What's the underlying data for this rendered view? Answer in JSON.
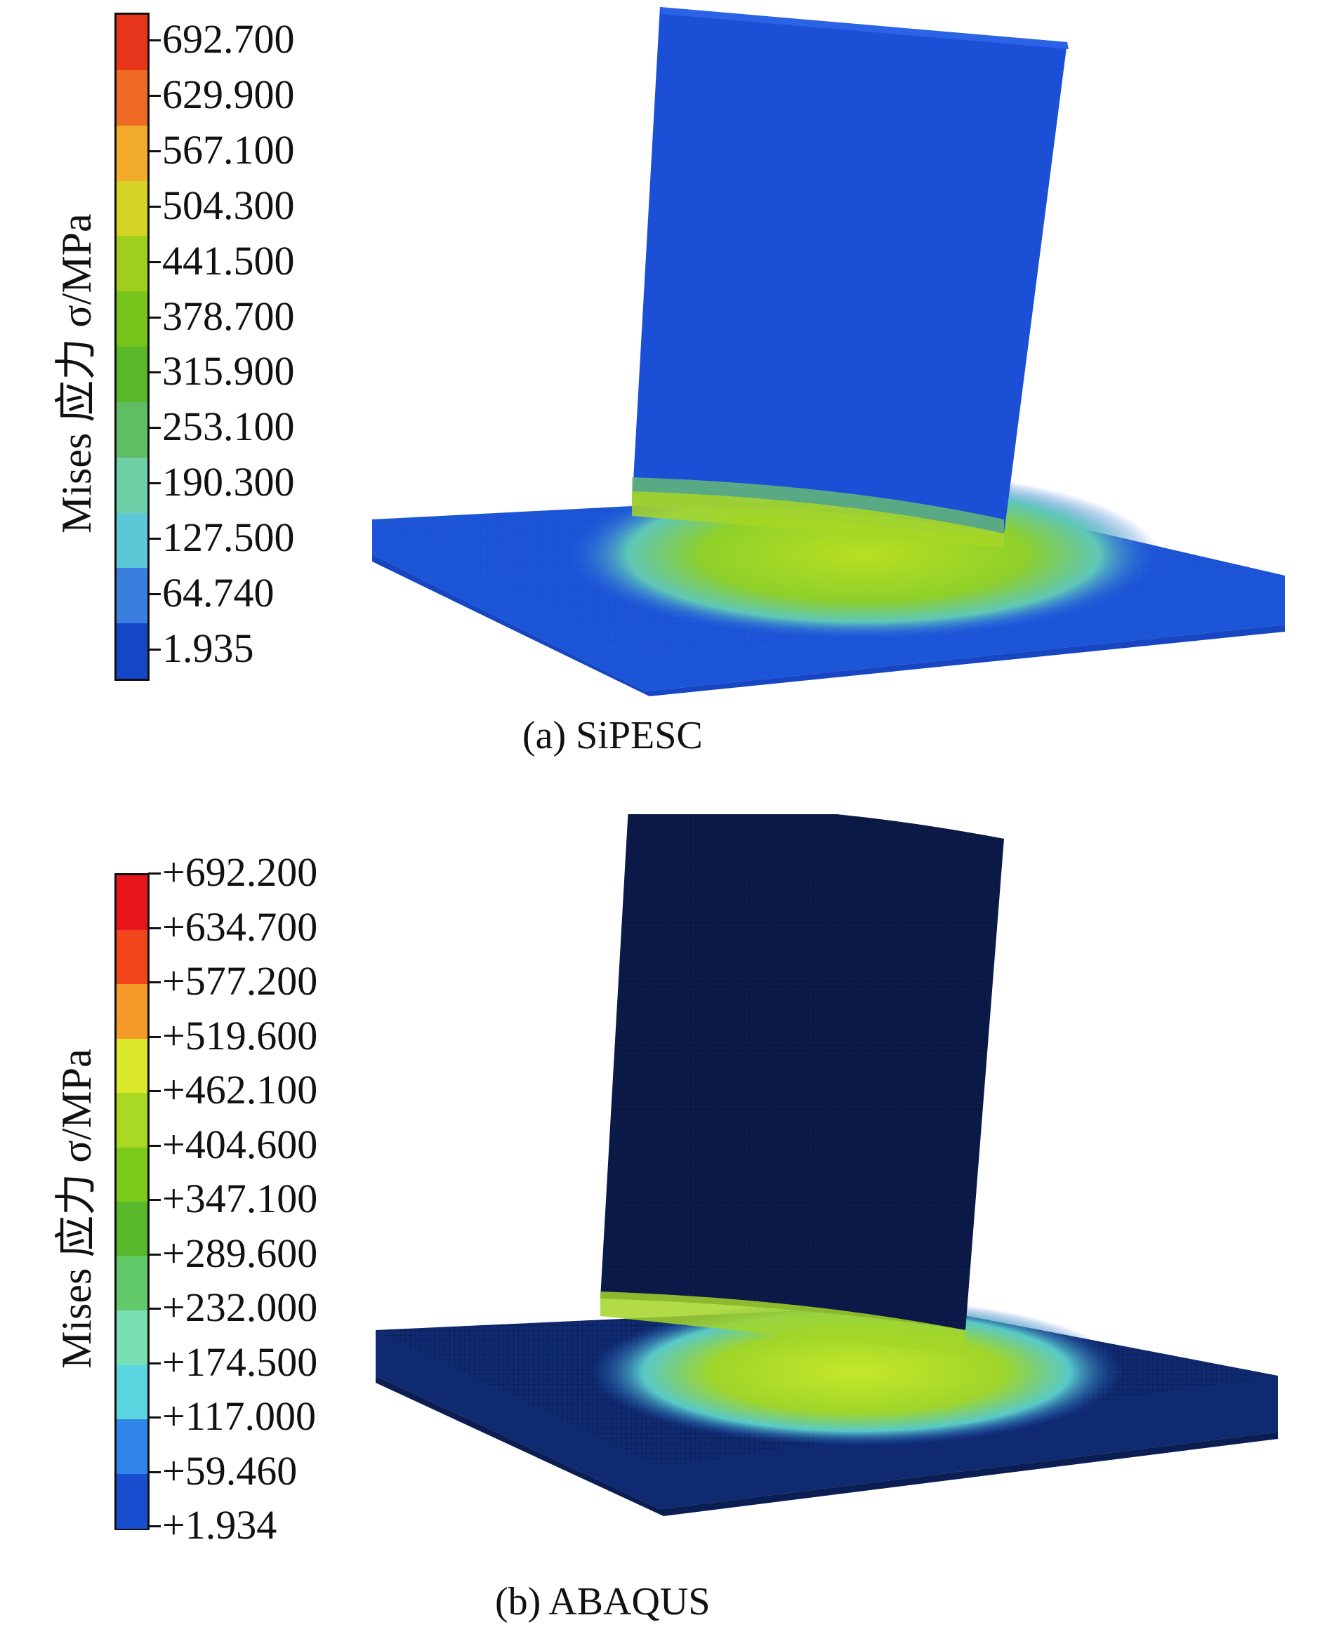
{
  "panels": [
    {
      "caption": "(a) SiPESC",
      "legend": {
        "title": "Mises 应力 σ/MPa",
        "labels": [
          "692.700",
          "629.900",
          "567.100",
          "504.300",
          "441.500",
          "378.700",
          "315.900",
          "253.100",
          "190.300",
          "127.500",
          "64.740",
          "1.935"
        ],
        "colors": [
          "#e8361c",
          "#ef6a24",
          "#f3ab2b",
          "#d6d424",
          "#9fcf1c",
          "#78c41a",
          "#58b82a",
          "#5fbd63",
          "#6fd0a8",
          "#5cc7d6",
          "#3a7fe0",
          "#1646c8"
        ]
      },
      "model_colors": {
        "body": "#1a4fd6",
        "plate": "#1d55d8",
        "hot": "#9ed21e"
      }
    },
    {
      "caption": "(b) ABAQUS",
      "legend": {
        "title": "Mises 应力 σ/MPa",
        "labels": [
          "+692.200",
          "+634.700",
          "+577.200",
          "+519.600",
          "+462.100",
          "+404.600",
          "+347.100",
          "+289.600",
          "+232.000",
          "+174.500",
          "+117.000",
          "+59.460",
          "+1.934"
        ],
        "colors": [
          "#e8161a",
          "#f2451c",
          "#f59a28",
          "#dbe82a",
          "#a9d922",
          "#7ccb1a",
          "#58b82c",
          "#62c96a",
          "#79e0b4",
          "#5ad6e0",
          "#2f85e8",
          "#1a4ed0"
        ]
      },
      "model_colors": {
        "body": "#0c1a4a",
        "plate": "#0f2a70",
        "hot": "#b8e026"
      }
    }
  ]
}
